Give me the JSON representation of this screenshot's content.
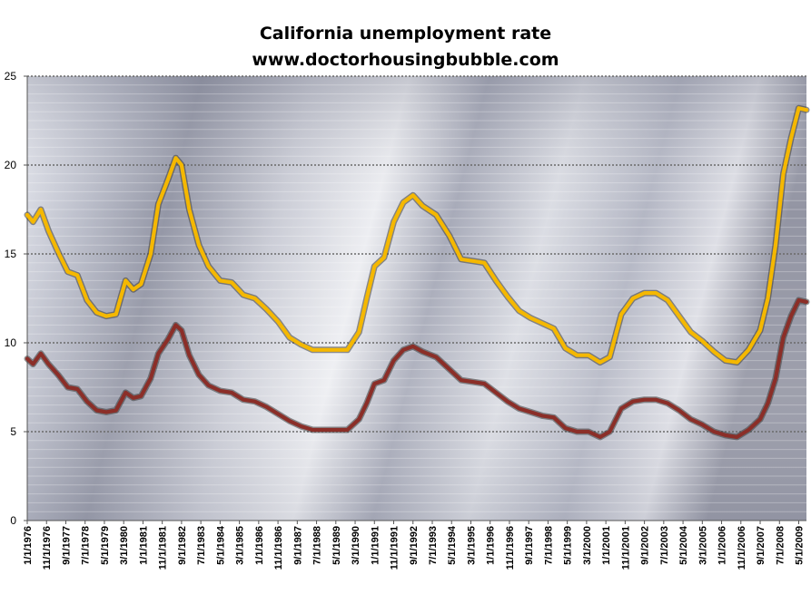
{
  "chart_data": {
    "type": "line",
    "title": "California unemployment rate",
    "subtitle": "www.doctorhousingbubble.com",
    "xlabel": "",
    "ylabel": "",
    "ylim": [
      0,
      25
    ],
    "yticks": [
      0,
      5,
      10,
      15,
      20,
      25
    ],
    "grid": true,
    "legend": "none",
    "x_tick_labels": [
      "1/1/1976",
      "11/1/1976",
      "9/1/1977",
      "7/1/1978",
      "5/1/1979",
      "3/1/1980",
      "1/1/1981",
      "11/1/1981",
      "9/1/1982",
      "7/1/1983",
      "5/1/1984",
      "3/1/1985",
      "1/1/1986",
      "11/1/1986",
      "9/1/1987",
      "7/1/1988",
      "5/1/1989",
      "3/1/1990",
      "1/1/1991",
      "11/1/1991",
      "9/1/1992",
      "7/1/1993",
      "5/1/1994",
      "3/1/1995",
      "1/1/1996",
      "11/1/1996",
      "9/1/1997",
      "7/1/1998",
      "5/1/1999",
      "3/1/2000",
      "1/1/2001",
      "11/1/2001",
      "9/1/2002",
      "7/1/2003",
      "5/1/2004",
      "3/1/2005",
      "1/1/2006",
      "11/1/2006",
      "9/1/2007",
      "7/1/2008",
      "5/1/2009"
    ],
    "x_range": [
      "1976-01",
      "2009-09"
    ],
    "series": [
      {
        "color": "#f5b800",
        "points": [
          [
            "1976-01",
            17.2
          ],
          [
            "1976-04",
            16.8
          ],
          [
            "1976-08",
            17.5
          ],
          [
            "1976-12",
            16.3
          ],
          [
            "1977-05",
            15.1
          ],
          [
            "1977-10",
            14.0
          ],
          [
            "1978-03",
            13.8
          ],
          [
            "1978-08",
            12.4
          ],
          [
            "1979-01",
            11.7
          ],
          [
            "1979-06",
            11.5
          ],
          [
            "1979-11",
            11.6
          ],
          [
            "1980-04",
            13.5
          ],
          [
            "1980-08",
            13.0
          ],
          [
            "1980-12",
            13.3
          ],
          [
            "1981-05",
            15.0
          ],
          [
            "1981-09",
            17.8
          ],
          [
            "1982-02",
            19.2
          ],
          [
            "1982-06",
            20.4
          ],
          [
            "1982-09",
            20.0
          ],
          [
            "1983-01",
            17.5
          ],
          [
            "1983-06",
            15.5
          ],
          [
            "1983-11",
            14.3
          ],
          [
            "1984-05",
            13.5
          ],
          [
            "1984-11",
            13.4
          ],
          [
            "1985-05",
            12.7
          ],
          [
            "1985-11",
            12.5
          ],
          [
            "1986-05",
            11.9
          ],
          [
            "1986-11",
            11.2
          ],
          [
            "1987-05",
            10.3
          ],
          [
            "1987-11",
            9.9
          ],
          [
            "1988-05",
            9.6
          ],
          [
            "1988-11",
            9.6
          ],
          [
            "1989-05",
            9.6
          ],
          [
            "1989-11",
            9.6
          ],
          [
            "1990-05",
            10.6
          ],
          [
            "1990-09",
            12.5
          ],
          [
            "1991-01",
            14.3
          ],
          [
            "1991-06",
            14.8
          ],
          [
            "1991-11",
            16.8
          ],
          [
            "1992-04",
            17.9
          ],
          [
            "1992-09",
            18.3
          ],
          [
            "1993-02",
            17.7
          ],
          [
            "1993-09",
            17.2
          ],
          [
            "1994-04",
            16.0
          ],
          [
            "1994-10",
            14.7
          ],
          [
            "1995-04",
            14.6
          ],
          [
            "1995-10",
            14.5
          ],
          [
            "1996-04",
            13.5
          ],
          [
            "1996-10",
            12.6
          ],
          [
            "1997-04",
            11.8
          ],
          [
            "1997-10",
            11.4
          ],
          [
            "1998-04",
            11.1
          ],
          [
            "1998-10",
            10.8
          ],
          [
            "1999-04",
            9.7
          ],
          [
            "1999-10",
            9.3
          ],
          [
            "2000-04",
            9.3
          ],
          [
            "2000-10",
            8.9
          ],
          [
            "2001-03",
            9.2
          ],
          [
            "2001-09",
            11.6
          ],
          [
            "2002-03",
            12.5
          ],
          [
            "2002-09",
            12.8
          ],
          [
            "2003-03",
            12.8
          ],
          [
            "2003-09",
            12.4
          ],
          [
            "2004-03",
            11.5
          ],
          [
            "2004-09",
            10.6
          ],
          [
            "2005-03",
            10.1
          ],
          [
            "2005-09",
            9.5
          ],
          [
            "2006-03",
            9.0
          ],
          [
            "2006-09",
            8.9
          ],
          [
            "2007-03",
            9.6
          ],
          [
            "2007-09",
            10.7
          ],
          [
            "2008-01",
            12.5
          ],
          [
            "2008-05",
            15.5
          ],
          [
            "2008-09",
            19.5
          ],
          [
            "2009-01",
            21.5
          ],
          [
            "2009-05",
            23.2
          ],
          [
            "2009-09",
            23.1
          ]
        ]
      },
      {
        "color": "#8b2e28",
        "points": [
          [
            "1976-01",
            9.1
          ],
          [
            "1976-04",
            8.8
          ],
          [
            "1976-08",
            9.4
          ],
          [
            "1976-12",
            8.8
          ],
          [
            "1977-05",
            8.2
          ],
          [
            "1977-10",
            7.5
          ],
          [
            "1978-03",
            7.4
          ],
          [
            "1978-08",
            6.7
          ],
          [
            "1979-01",
            6.2
          ],
          [
            "1979-06",
            6.1
          ],
          [
            "1979-11",
            6.2
          ],
          [
            "1980-04",
            7.2
          ],
          [
            "1980-08",
            6.9
          ],
          [
            "1980-12",
            7.0
          ],
          [
            "1981-05",
            8.0
          ],
          [
            "1981-09",
            9.4
          ],
          [
            "1982-02",
            10.2
          ],
          [
            "1982-06",
            11.0
          ],
          [
            "1982-09",
            10.7
          ],
          [
            "1983-01",
            9.3
          ],
          [
            "1983-06",
            8.2
          ],
          [
            "1983-11",
            7.6
          ],
          [
            "1984-05",
            7.3
          ],
          [
            "1984-11",
            7.2
          ],
          [
            "1985-05",
            6.8
          ],
          [
            "1985-11",
            6.7
          ],
          [
            "1986-05",
            6.4
          ],
          [
            "1986-11",
            6.0
          ],
          [
            "1987-05",
            5.6
          ],
          [
            "1987-11",
            5.3
          ],
          [
            "1988-05",
            5.1
          ],
          [
            "1988-11",
            5.1
          ],
          [
            "1989-05",
            5.1
          ],
          [
            "1989-11",
            5.1
          ],
          [
            "1990-05",
            5.7
          ],
          [
            "1990-09",
            6.6
          ],
          [
            "1991-01",
            7.7
          ],
          [
            "1991-06",
            7.9
          ],
          [
            "1991-11",
            9.0
          ],
          [
            "1992-04",
            9.6
          ],
          [
            "1992-09",
            9.8
          ],
          [
            "1993-02",
            9.5
          ],
          [
            "1993-09",
            9.2
          ],
          [
            "1994-04",
            8.5
          ],
          [
            "1994-10",
            7.9
          ],
          [
            "1995-04",
            7.8
          ],
          [
            "1995-10",
            7.7
          ],
          [
            "1996-04",
            7.2
          ],
          [
            "1996-10",
            6.7
          ],
          [
            "1997-04",
            6.3
          ],
          [
            "1997-10",
            6.1
          ],
          [
            "1998-04",
            5.9
          ],
          [
            "1998-10",
            5.8
          ],
          [
            "1999-04",
            5.2
          ],
          [
            "1999-10",
            5.0
          ],
          [
            "2000-04",
            5.0
          ],
          [
            "2000-10",
            4.7
          ],
          [
            "2001-03",
            5.0
          ],
          [
            "2001-09",
            6.3
          ],
          [
            "2002-03",
            6.7
          ],
          [
            "2002-09",
            6.8
          ],
          [
            "2003-03",
            6.8
          ],
          [
            "2003-09",
            6.6
          ],
          [
            "2004-03",
            6.2
          ],
          [
            "2004-09",
            5.7
          ],
          [
            "2005-03",
            5.4
          ],
          [
            "2005-09",
            5.0
          ],
          [
            "2006-03",
            4.8
          ],
          [
            "2006-09",
            4.7
          ],
          [
            "2007-03",
            5.1
          ],
          [
            "2007-09",
            5.7
          ],
          [
            "2008-01",
            6.6
          ],
          [
            "2008-05",
            8.0
          ],
          [
            "2008-09",
            10.3
          ],
          [
            "2009-01",
            11.5
          ],
          [
            "2009-05",
            12.4
          ],
          [
            "2009-09",
            12.3
          ]
        ]
      }
    ]
  }
}
